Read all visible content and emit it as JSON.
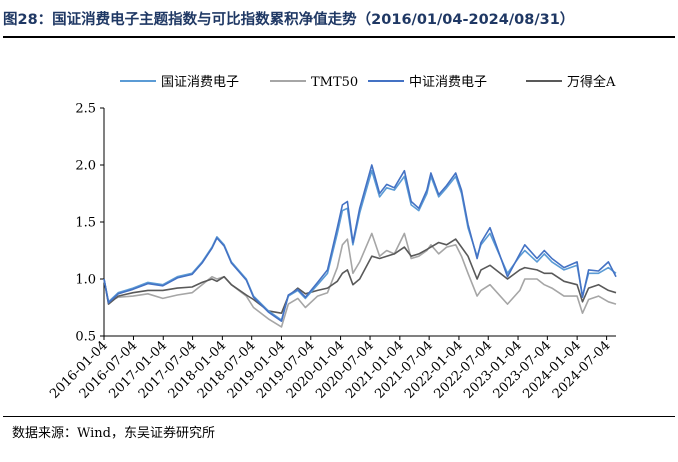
{
  "header": {
    "title": "图28：国证消费电子主题指数与可比指数累积净值走势（2016/01/04-2024/08/31）"
  },
  "footer": {
    "source": "数据来源：Wind，东吴证券研究所"
  },
  "chart_data": {
    "type": "line",
    "title": "",
    "xlabel": "",
    "ylabel": "",
    "ylim": [
      0.5,
      2.5
    ],
    "yticks": [
      "0.5",
      "1.0",
      "1.5",
      "2.0",
      "2.5"
    ],
    "xlim": [
      "2016-01-04",
      "2024-08-31"
    ],
    "xticks": [
      "2016-01-04",
      "2016-07-04",
      "2017-01-04",
      "2017-07-04",
      "2018-01-04",
      "2018-07-04",
      "2019-01-04",
      "2019-07-04",
      "2020-01-04",
      "2020-07-04",
      "2021-01-04",
      "2021-07-04",
      "2022-01-04",
      "2022-07-04",
      "2023-01-04",
      "2023-07-04",
      "2024-01-04",
      "2024-07-04"
    ],
    "grid": false,
    "legend_position": "top",
    "series": [
      {
        "name": "国证消费电子",
        "color": "#5b9bd5",
        "points": [
          [
            "2016-01-04",
            1.0
          ],
          [
            "2016-02-01",
            0.8
          ],
          [
            "2016-04-01",
            0.88
          ],
          [
            "2016-07-01",
            0.92
          ],
          [
            "2016-10-01",
            0.97
          ],
          [
            "2017-01-01",
            0.95
          ],
          [
            "2017-04-01",
            1.02
          ],
          [
            "2017-07-01",
            1.05
          ],
          [
            "2017-09-01",
            1.15
          ],
          [
            "2017-11-01",
            1.28
          ],
          [
            "2017-12-01",
            1.37
          ],
          [
            "2018-01-15",
            1.3
          ],
          [
            "2018-03-01",
            1.15
          ],
          [
            "2018-06-01",
            1.0
          ],
          [
            "2018-07-15",
            0.85
          ],
          [
            "2018-10-15",
            0.72
          ],
          [
            "2019-01-04",
            0.64
          ],
          [
            "2019-02-15",
            0.85
          ],
          [
            "2019-04-15",
            0.9
          ],
          [
            "2019-06-01",
            0.83
          ],
          [
            "2019-08-15",
            0.95
          ],
          [
            "2019-10-15",
            1.05
          ],
          [
            "2019-12-15",
            1.4
          ],
          [
            "2020-01-15",
            1.6
          ],
          [
            "2020-02-15",
            1.62
          ],
          [
            "2020-03-20",
            1.3
          ],
          [
            "2020-05-01",
            1.58
          ],
          [
            "2020-07-15",
            1.95
          ],
          [
            "2020-09-01",
            1.72
          ],
          [
            "2020-10-15",
            1.8
          ],
          [
            "2020-12-01",
            1.78
          ],
          [
            "2021-02-01",
            1.9
          ],
          [
            "2021-03-15",
            1.65
          ],
          [
            "2021-05-01",
            1.6
          ],
          [
            "2021-06-20",
            1.75
          ],
          [
            "2021-07-15",
            1.9
          ],
          [
            "2021-09-01",
            1.72
          ],
          [
            "2021-10-20",
            1.8
          ],
          [
            "2021-12-15",
            1.9
          ],
          [
            "2022-01-20",
            1.75
          ],
          [
            "2022-03-01",
            1.45
          ],
          [
            "2022-04-26",
            1.2
          ],
          [
            "2022-05-20",
            1.3
          ],
          [
            "2022-07-15",
            1.4
          ],
          [
            "2022-10-31",
            1.05
          ],
          [
            "2023-01-15",
            1.2
          ],
          [
            "2023-02-15",
            1.25
          ],
          [
            "2023-05-01",
            1.15
          ],
          [
            "2023-06-15",
            1.22
          ],
          [
            "2023-08-01",
            1.15
          ],
          [
            "2023-10-15",
            1.08
          ],
          [
            "2024-01-04",
            1.12
          ],
          [
            "2024-02-06",
            0.85
          ],
          [
            "2024-03-15",
            1.05
          ],
          [
            "2024-05-15",
            1.05
          ],
          [
            "2024-07-15",
            1.1
          ],
          [
            "2024-08-31",
            1.05
          ]
        ]
      },
      {
        "name": "TMT50",
        "color": "#a6a6a6",
        "points": [
          [
            "2016-01-04",
            1.0
          ],
          [
            "2016-02-01",
            0.8
          ],
          [
            "2016-04-01",
            0.84
          ],
          [
            "2016-07-01",
            0.85
          ],
          [
            "2016-10-01",
            0.87
          ],
          [
            "2017-01-01",
            0.83
          ],
          [
            "2017-04-01",
            0.86
          ],
          [
            "2017-07-01",
            0.88
          ],
          [
            "2017-09-01",
            0.95
          ],
          [
            "2017-11-01",
            1.02
          ],
          [
            "2017-12-01",
            1.0
          ],
          [
            "2018-01-15",
            1.02
          ],
          [
            "2018-03-01",
            0.95
          ],
          [
            "2018-06-01",
            0.85
          ],
          [
            "2018-07-15",
            0.75
          ],
          [
            "2018-10-15",
            0.65
          ],
          [
            "2019-01-04",
            0.58
          ],
          [
            "2019-02-15",
            0.78
          ],
          [
            "2019-04-15",
            0.83
          ],
          [
            "2019-06-01",
            0.75
          ],
          [
            "2019-08-15",
            0.85
          ],
          [
            "2019-10-15",
            0.88
          ],
          [
            "2019-12-15",
            1.1
          ],
          [
            "2020-01-15",
            1.3
          ],
          [
            "2020-02-15",
            1.35
          ],
          [
            "2020-03-20",
            1.05
          ],
          [
            "2020-05-01",
            1.15
          ],
          [
            "2020-07-15",
            1.4
          ],
          [
            "2020-09-01",
            1.2
          ],
          [
            "2020-10-15",
            1.25
          ],
          [
            "2020-12-01",
            1.22
          ],
          [
            "2021-02-01",
            1.4
          ],
          [
            "2021-03-15",
            1.18
          ],
          [
            "2021-05-01",
            1.2
          ],
          [
            "2021-06-20",
            1.25
          ],
          [
            "2021-07-15",
            1.3
          ],
          [
            "2021-09-01",
            1.22
          ],
          [
            "2021-10-20",
            1.28
          ],
          [
            "2021-12-15",
            1.3
          ],
          [
            "2022-01-20",
            1.2
          ],
          [
            "2022-03-01",
            1.05
          ],
          [
            "2022-04-26",
            0.85
          ],
          [
            "2022-05-20",
            0.9
          ],
          [
            "2022-07-15",
            0.95
          ],
          [
            "2022-10-31",
            0.78
          ],
          [
            "2023-01-15",
            0.9
          ],
          [
            "2023-02-15",
            1.0
          ],
          [
            "2023-05-01",
            1.0
          ],
          [
            "2023-06-15",
            0.95
          ],
          [
            "2023-08-01",
            0.92
          ],
          [
            "2023-10-15",
            0.85
          ],
          [
            "2024-01-04",
            0.85
          ],
          [
            "2024-02-06",
            0.7
          ],
          [
            "2024-03-15",
            0.82
          ],
          [
            "2024-05-15",
            0.85
          ],
          [
            "2024-07-15",
            0.8
          ],
          [
            "2024-08-31",
            0.78
          ]
        ]
      },
      {
        "name": "中证消费电子",
        "color": "#4472c4",
        "points": [
          [
            "2016-01-04",
            1.0
          ],
          [
            "2016-02-01",
            0.79
          ],
          [
            "2016-04-01",
            0.87
          ],
          [
            "2016-07-01",
            0.91
          ],
          [
            "2016-10-01",
            0.96
          ],
          [
            "2017-01-01",
            0.94
          ],
          [
            "2017-04-01",
            1.01
          ],
          [
            "2017-07-01",
            1.04
          ],
          [
            "2017-09-01",
            1.14
          ],
          [
            "2017-11-01",
            1.27
          ],
          [
            "2017-12-01",
            1.36
          ],
          [
            "2018-01-15",
            1.29
          ],
          [
            "2018-03-01",
            1.14
          ],
          [
            "2018-06-01",
            0.99
          ],
          [
            "2018-07-15",
            0.84
          ],
          [
            "2018-10-15",
            0.71
          ],
          [
            "2019-01-04",
            0.63
          ],
          [
            "2019-02-15",
            0.86
          ],
          [
            "2019-04-15",
            0.91
          ],
          [
            "2019-06-01",
            0.84
          ],
          [
            "2019-08-15",
            0.97
          ],
          [
            "2019-10-15",
            1.08
          ],
          [
            "2019-12-15",
            1.45
          ],
          [
            "2020-01-15",
            1.65
          ],
          [
            "2020-02-15",
            1.68
          ],
          [
            "2020-03-20",
            1.32
          ],
          [
            "2020-05-01",
            1.62
          ],
          [
            "2020-07-15",
            2.0
          ],
          [
            "2020-09-01",
            1.75
          ],
          [
            "2020-10-15",
            1.83
          ],
          [
            "2020-12-01",
            1.8
          ],
          [
            "2021-02-01",
            1.95
          ],
          [
            "2021-03-15",
            1.68
          ],
          [
            "2021-05-01",
            1.62
          ],
          [
            "2021-06-20",
            1.78
          ],
          [
            "2021-07-15",
            1.93
          ],
          [
            "2021-09-01",
            1.74
          ],
          [
            "2021-10-20",
            1.82
          ],
          [
            "2021-12-15",
            1.93
          ],
          [
            "2022-01-20",
            1.78
          ],
          [
            "2022-03-01",
            1.48
          ],
          [
            "2022-04-26",
            1.18
          ],
          [
            "2022-05-20",
            1.32
          ],
          [
            "2022-07-15",
            1.45
          ],
          [
            "2022-10-31",
            1.02
          ],
          [
            "2023-01-15",
            1.22
          ],
          [
            "2023-02-15",
            1.3
          ],
          [
            "2023-05-01",
            1.18
          ],
          [
            "2023-06-15",
            1.25
          ],
          [
            "2023-08-01",
            1.18
          ],
          [
            "2023-10-15",
            1.1
          ],
          [
            "2024-01-04",
            1.15
          ],
          [
            "2024-02-06",
            0.84
          ],
          [
            "2024-03-15",
            1.08
          ],
          [
            "2024-05-15",
            1.07
          ],
          [
            "2024-07-15",
            1.15
          ],
          [
            "2024-08-31",
            1.02
          ]
        ]
      },
      {
        "name": "万得全A",
        "color": "#595959",
        "points": [
          [
            "2016-01-04",
            1.0
          ],
          [
            "2016-02-01",
            0.78
          ],
          [
            "2016-04-01",
            0.85
          ],
          [
            "2016-07-01",
            0.88
          ],
          [
            "2016-10-01",
            0.9
          ],
          [
            "2017-01-01",
            0.9
          ],
          [
            "2017-04-01",
            0.92
          ],
          [
            "2017-07-01",
            0.93
          ],
          [
            "2017-09-01",
            0.97
          ],
          [
            "2017-11-01",
            1.0
          ],
          [
            "2017-12-01",
            0.98
          ],
          [
            "2018-01-15",
            1.02
          ],
          [
            "2018-03-01",
            0.95
          ],
          [
            "2018-06-01",
            0.86
          ],
          [
            "2018-07-15",
            0.82
          ],
          [
            "2018-10-15",
            0.72
          ],
          [
            "2019-01-04",
            0.7
          ],
          [
            "2019-02-15",
            0.85
          ],
          [
            "2019-04-15",
            0.92
          ],
          [
            "2019-06-01",
            0.87
          ],
          [
            "2019-08-15",
            0.9
          ],
          [
            "2019-10-15",
            0.92
          ],
          [
            "2019-12-15",
            0.98
          ],
          [
            "2020-01-15",
            1.05
          ],
          [
            "2020-02-15",
            1.08
          ],
          [
            "2020-03-20",
            0.95
          ],
          [
            "2020-05-01",
            1.0
          ],
          [
            "2020-07-15",
            1.2
          ],
          [
            "2020-09-01",
            1.18
          ],
          [
            "2020-10-15",
            1.2
          ],
          [
            "2020-12-01",
            1.22
          ],
          [
            "2021-02-01",
            1.28
          ],
          [
            "2021-03-15",
            1.2
          ],
          [
            "2021-05-01",
            1.22
          ],
          [
            "2021-06-20",
            1.26
          ],
          [
            "2021-07-15",
            1.28
          ],
          [
            "2021-09-01",
            1.32
          ],
          [
            "2021-10-20",
            1.3
          ],
          [
            "2021-12-15",
            1.35
          ],
          [
            "2022-01-20",
            1.28
          ],
          [
            "2022-03-01",
            1.2
          ],
          [
            "2022-04-26",
            1.0
          ],
          [
            "2022-05-20",
            1.08
          ],
          [
            "2022-07-15",
            1.12
          ],
          [
            "2022-10-31",
            1.0
          ],
          [
            "2023-01-15",
            1.08
          ],
          [
            "2023-02-15",
            1.1
          ],
          [
            "2023-05-01",
            1.08
          ],
          [
            "2023-06-15",
            1.05
          ],
          [
            "2023-08-01",
            1.05
          ],
          [
            "2023-10-15",
            0.98
          ],
          [
            "2024-01-04",
            0.95
          ],
          [
            "2024-02-06",
            0.8
          ],
          [
            "2024-03-15",
            0.92
          ],
          [
            "2024-05-15",
            0.95
          ],
          [
            "2024-07-15",
            0.9
          ],
          [
            "2024-08-31",
            0.88
          ]
        ]
      }
    ]
  }
}
